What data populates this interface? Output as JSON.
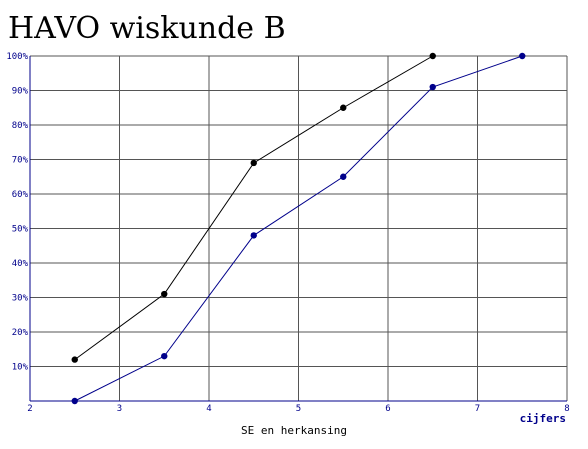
{
  "chart_data": {
    "type": "line",
    "title": "HAVO wiskunde B",
    "xlabel": "SE en herkansing",
    "x_unit_label": "cijfers",
    "xlim": [
      2,
      8
    ],
    "ylim": [
      0,
      100
    ],
    "x_ticks": [
      "2",
      "3",
      "4",
      "5",
      "6",
      "7",
      "8"
    ],
    "y_ticks": [
      "10%",
      "20%",
      "30%",
      "40%",
      "50%",
      "60%",
      "70%",
      "80%",
      "90%",
      "100%"
    ],
    "grid": true,
    "series": [
      {
        "color": "#000000",
        "points": [
          {
            "x": 2.5,
            "y": 12
          },
          {
            "x": 3.5,
            "y": 31
          },
          {
            "x": 4.5,
            "y": 69
          },
          {
            "x": 5.5,
            "y": 85
          },
          {
            "x": 6.5,
            "y": 100
          }
        ]
      },
      {
        "color": "#00008b",
        "points": [
          {
            "x": 2.5,
            "y": 0
          },
          {
            "x": 3.5,
            "y": 13
          },
          {
            "x": 4.5,
            "y": 48
          },
          {
            "x": 5.5,
            "y": 65
          },
          {
            "x": 6.5,
            "y": 91
          },
          {
            "x": 7.5,
            "y": 100
          }
        ]
      }
    ],
    "colors": {
      "grid": "#555555",
      "axis": "#00008b",
      "tick_text": "#00008b",
      "label_text": "#000000"
    }
  }
}
